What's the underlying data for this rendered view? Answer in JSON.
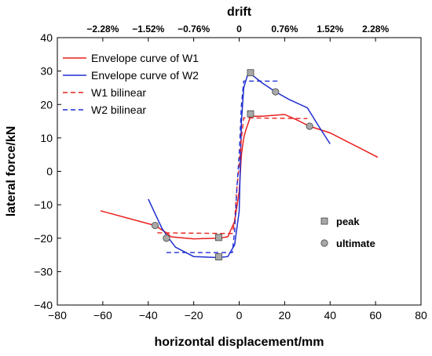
{
  "chart_data": {
    "type": "line",
    "xlabel": "horizontal displacement/mm",
    "ylabel": "lateral force/kN",
    "top_axis_label": "drift",
    "xlim": [
      -80,
      80
    ],
    "ylim": [
      -40,
      40
    ],
    "x_ticks": [
      -80,
      -60,
      -40,
      -20,
      0,
      20,
      40,
      60,
      80
    ],
    "y_ticks": [
      -40,
      -30,
      -20,
      -10,
      0,
      10,
      20,
      30,
      40
    ],
    "top_ticks": [
      {
        "x": -60,
        "label": "−2.28%"
      },
      {
        "x": -40,
        "label": "−1.52%"
      },
      {
        "x": -20,
        "label": "−0.76%"
      },
      {
        "x": 0,
        "label": "0"
      },
      {
        "x": 20,
        "label": "0.76%"
      },
      {
        "x": 40,
        "label": "1.52%"
      },
      {
        "x": 60,
        "label": "2.28%"
      }
    ],
    "series": [
      {
        "name": "Envelope curve of W1",
        "color": "#e8201e",
        "style": "solid",
        "points": [
          [
            -61,
            -11.8
          ],
          [
            -37,
            -16.2
          ],
          [
            -32,
            -18.4
          ],
          [
            -30,
            -19.6
          ],
          [
            -20,
            -20.2
          ],
          [
            -9,
            -20.0
          ],
          [
            -5,
            -19.6
          ],
          [
            -2,
            -15.0
          ],
          [
            0,
            -6.0
          ],
          [
            1,
            5.0
          ],
          [
            2,
            10.0
          ],
          [
            3,
            12.5
          ],
          [
            5,
            16.5
          ],
          [
            10,
            16.5
          ],
          [
            20,
            17.0
          ],
          [
            25,
            15.5
          ],
          [
            31,
            13.5
          ],
          [
            40,
            11.5
          ],
          [
            61,
            4.2
          ]
        ]
      },
      {
        "name": "Envelope curve of W2",
        "color": "#1f2fd0",
        "style": "solid",
        "points": [
          [
            -40,
            -8.3
          ],
          [
            -34,
            -17.0
          ],
          [
            -31,
            -20.0
          ],
          [
            -28,
            -22.7
          ],
          [
            -20,
            -25.5
          ],
          [
            -9,
            -25.8
          ],
          [
            -5,
            -25.5
          ],
          [
            -2,
            -22.0
          ],
          [
            0,
            -12.0
          ],
          [
            1,
            15.0
          ],
          [
            2,
            25.0
          ],
          [
            4,
            29.5
          ],
          [
            5,
            29.2
          ],
          [
            10,
            26.5
          ],
          [
            16,
            23.8
          ],
          [
            22,
            21.5
          ],
          [
            30,
            19.0
          ],
          [
            35,
            13.5
          ],
          [
            40,
            8.2
          ]
        ]
      },
      {
        "name": "W1 bilinear",
        "color": "#e8201e",
        "style": "dashed",
        "points": [
          [
            -36,
            -18.4
          ],
          [
            -3,
            -18.6
          ],
          [
            -2,
            -15.0
          ],
          [
            -1,
            -5.0
          ],
          [
            0,
            2.0
          ],
          [
            1,
            10.0
          ],
          [
            2,
            16.0
          ],
          [
            30,
            15.8
          ]
        ]
      },
      {
        "name": "W2 bilinear",
        "color": "#1f2fd0",
        "style": "dashed",
        "points": [
          [
            -32,
            -24.3
          ],
          [
            -3,
            -24.3
          ],
          [
            -2,
            -18.0
          ],
          [
            -1,
            -5.0
          ],
          [
            0,
            5.0
          ],
          [
            1,
            20.0
          ],
          [
            2,
            27.0
          ],
          [
            17,
            27.0
          ]
        ]
      }
    ],
    "peak_points": [
      [
        5,
        17.2
      ],
      [
        5,
        29.5
      ],
      [
        -9,
        -19.8
      ],
      [
        -9,
        -25.6
      ]
    ],
    "ultimate_points": [
      [
        16,
        23.8
      ],
      [
        31,
        13.5
      ],
      [
        -37,
        -16.2
      ],
      [
        -32,
        -20.0
      ]
    ],
    "marker_legend": {
      "peak": "peak",
      "ultimate": "ultimate"
    },
    "legend_placement": "top-left",
    "grid": false
  }
}
